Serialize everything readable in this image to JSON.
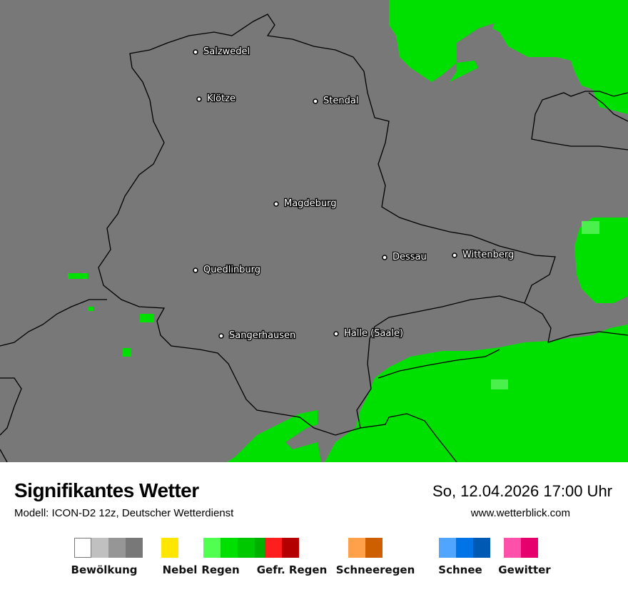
{
  "map": {
    "background_color": "#787878",
    "precip_color": "#00e000",
    "light_precip_color": "#4cf04c",
    "cities": [
      "Salzwedel",
      "Klötze",
      "Stendal",
      "Magdeburg",
      "Dessau",
      "Wittenberg",
      "Quedlinburg",
      "Sangerhausen",
      "Halle (Saale)"
    ]
  },
  "header": {
    "title": "Signifikantes Wetter",
    "subtitle": "Modell: ICON-D2 12z, Deutscher Wetterdienst",
    "datetime": "So, 12.04.2026 17:00 Uhr",
    "website": "www.wetterblick.com"
  },
  "legend": [
    {
      "label": "Bewölkung",
      "colors": [
        "#ffffff",
        "#c0c0c0",
        "#969696",
        "#787878"
      ]
    },
    {
      "label": "Nebel",
      "colors": [
        "#ffe600"
      ]
    },
    {
      "label": "Regen",
      "colors": [
        "#50ff50",
        "#00e000",
        "#00c800",
        "#00b000"
      ]
    },
    {
      "label": "Gefr. Regen",
      "colors": [
        "#ff1e1e",
        "#b40000"
      ]
    },
    {
      "label": "Schneeregen",
      "colors": [
        "#ffa04b",
        "#cd5f00"
      ]
    },
    {
      "label": "Schnee",
      "colors": [
        "#50a5ff",
        "#0073e6",
        "#005ab4"
      ]
    },
    {
      "label": "Gewitter",
      "colors": [
        "#ff50aa",
        "#e6006e"
      ]
    }
  ]
}
